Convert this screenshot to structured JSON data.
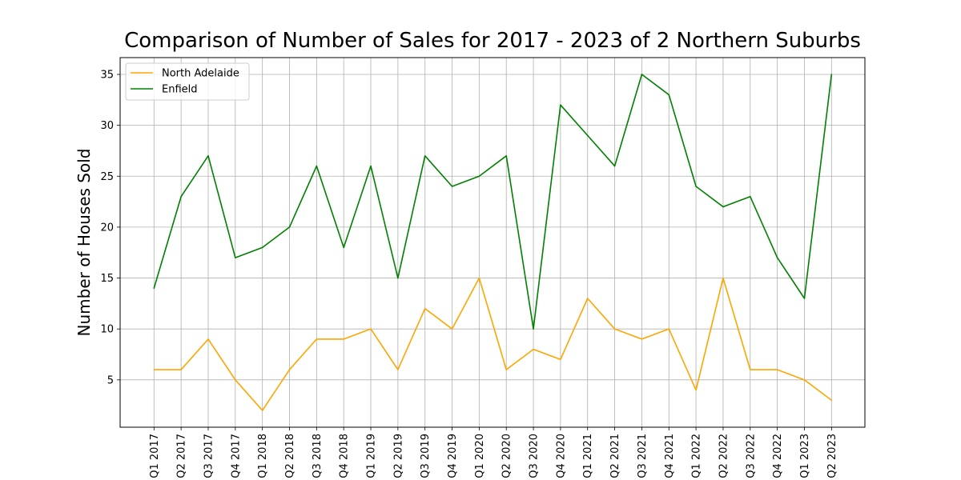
{
  "chart_data": {
    "type": "line",
    "title": "Comparison of Number of Sales for 2017 - 2023 of 2 Northern Suburbs",
    "xlabel": "",
    "ylabel": "Number of Houses Sold",
    "categories": [
      "Q1 2017",
      "Q2 2017",
      "Q3 2017",
      "Q4 2017",
      "Q1 2018",
      "Q2 2018",
      "Q3 2018",
      "Q4 2018",
      "Q1 2019",
      "Q2 2019",
      "Q3 2019",
      "Q4 2019",
      "Q1 2020",
      "Q2 2020",
      "Q3 2020",
      "Q4 2020",
      "Q1 2021",
      "Q2 2021",
      "Q3 2021",
      "Q4 2021",
      "Q1 2022",
      "Q2 2022",
      "Q3 2022",
      "Q4 2022",
      "Q1 2023",
      "Q2 2023"
    ],
    "series": [
      {
        "name": "North Adelaide",
        "color": "#ffa500",
        "values": [
          6,
          6,
          9,
          5,
          2,
          6,
          9,
          9,
          10,
          6,
          12,
          10,
          15,
          6,
          8,
          7,
          13,
          10,
          9,
          10,
          4,
          15,
          6,
          6,
          5,
          3
        ]
      },
      {
        "name": "Enfield",
        "color": "#008000",
        "values": [
          14,
          23,
          27,
          17,
          18,
          20,
          26,
          18,
          26,
          15,
          27,
          24,
          25,
          27,
          10,
          32,
          29,
          26,
          35,
          33,
          24,
          22,
          23,
          17,
          13,
          35
        ]
      }
    ],
    "ylim": [
      0.35,
      36.65
    ],
    "yticks": [
      5,
      10,
      15,
      20,
      25,
      30,
      35
    ],
    "grid": true,
    "legend_position": "top-left"
  }
}
